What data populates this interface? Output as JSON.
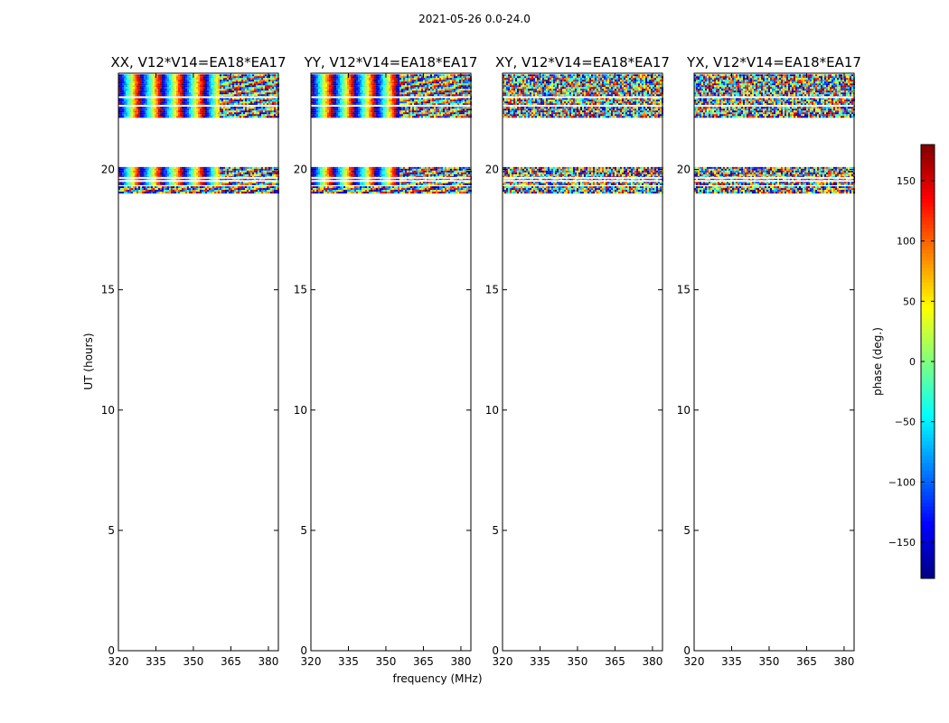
{
  "chart_data": {
    "type": "heatmap",
    "suptitle": "2021-05-26 0.0-24.0",
    "ylabel": "UT (hours)",
    "xlabel": "frequency (MHz)",
    "xlim": [
      320,
      384
    ],
    "ylim": [
      0,
      24
    ],
    "xticks": [
      320,
      335,
      350,
      365,
      380
    ],
    "yticks": [
      0,
      5,
      10,
      15,
      20
    ],
    "panels": [
      {
        "title": "XX, V12*V14=EA18*EA17",
        "kind": "parallel",
        "fringe_period_mhz": 8.5,
        "coherent_until_mhz": 360
      },
      {
        "title": "YY, V12*V14=EA18*EA17",
        "kind": "parallel",
        "fringe_period_mhz": 8.5,
        "coherent_until_mhz": 355
      },
      {
        "title": "XY, V12*V14=EA18*EA17",
        "kind": "cross",
        "fringe_period_mhz": 0,
        "coherent_until_mhz": 0
      },
      {
        "title": "YX, V12*V14=EA18*EA17",
        "kind": "cross",
        "fringe_period_mhz": 0,
        "coherent_until_mhz": 0
      }
    ],
    "data_bands_hours": [
      [
        22.2,
        23.95
      ],
      [
        19.4,
        20.1
      ],
      [
        19.0,
        19.3
      ]
    ],
    "blank_rows_hours": [
      23.0,
      22.65,
      19.65,
      19.52
    ],
    "colorbar": {
      "label": "phase (deg.)",
      "range": [
        -180,
        180
      ],
      "ticks": [
        -150,
        -100,
        -50,
        0,
        50,
        100,
        150
      ],
      "colormap": "jet"
    }
  }
}
